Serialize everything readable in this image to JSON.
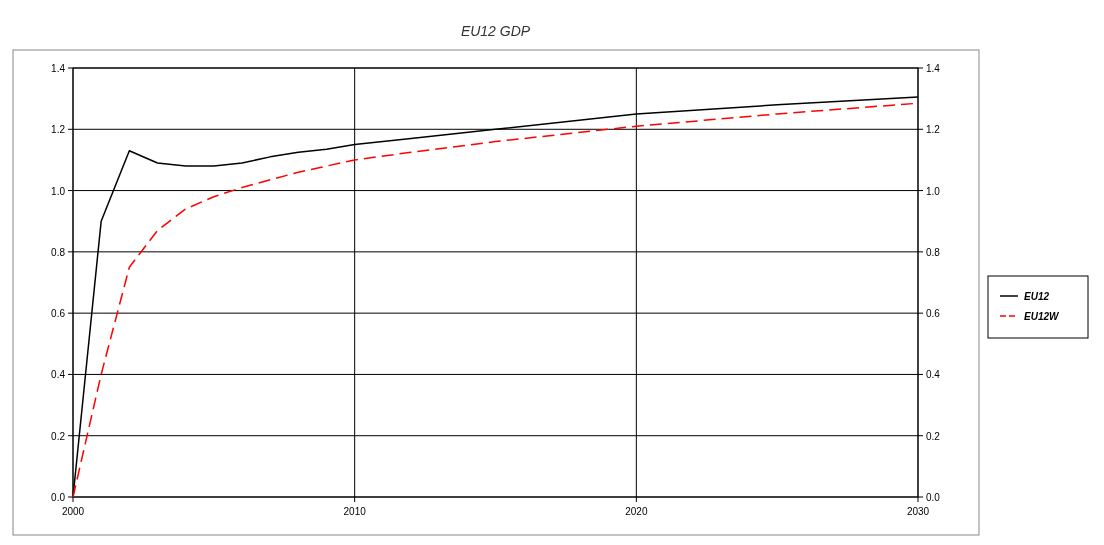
{
  "chart_data": {
    "type": "line",
    "title": "EU12 GDP",
    "x": [
      2000,
      2001,
      2002,
      2003,
      2004,
      2005,
      2006,
      2007,
      2008,
      2009,
      2010,
      2012,
      2015,
      2020,
      2025,
      2030
    ],
    "series": [
      {
        "name": "EU12",
        "color": "#000000",
        "line_style": "solid",
        "values": [
          0,
          0.9,
          1.13,
          1.09,
          1.08,
          1.08,
          1.09,
          1.11,
          1.125,
          1.135,
          1.15,
          1.17,
          1.2,
          1.25,
          1.28,
          1.305
        ]
      },
      {
        "name": "EU12W",
        "color": "#ff0000",
        "line_style": "dashed",
        "values": [
          0,
          0.4,
          0.75,
          0.87,
          0.94,
          0.98,
          1.01,
          1.035,
          1.06,
          1.08,
          1.1,
          1.125,
          1.16,
          1.21,
          1.25,
          1.285
        ]
      }
    ],
    "xlim": [
      2000,
      2030
    ],
    "xticks": [
      2000,
      2010,
      2020,
      2030
    ],
    "ylim": [
      0,
      1.4
    ],
    "yticks": [
      "0.0",
      0.2,
      0.4,
      0.6,
      0.8,
      "1.0",
      1.2,
      1.4
    ],
    "y2lim": [
      0,
      1.4
    ],
    "y2ticks": [
      "0.0",
      0.2,
      0.4,
      0.6,
      0.8,
      "1.0",
      1.2,
      1.4
    ],
    "grid": true,
    "legend": "right"
  }
}
